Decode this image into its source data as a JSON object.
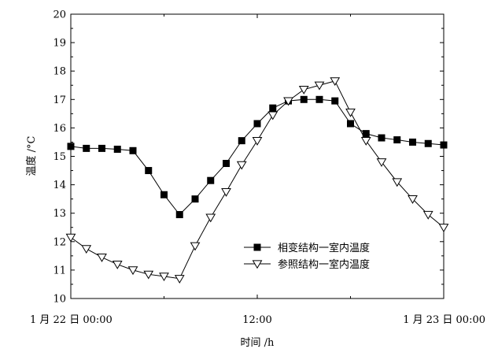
{
  "chart_data": {
    "type": "line",
    "xlabel": "时间 /h",
    "ylabel": "温度 /°C",
    "ylim": [
      10,
      20
    ],
    "xlim": [
      0,
      24
    ],
    "x_ticks": [
      {
        "value": 0,
        "label": "1 月 22 日 00:00"
      },
      {
        "value": 12,
        "label": "12:00"
      },
      {
        "value": 24,
        "label": "1 月 23 日 00:00"
      }
    ],
    "y_ticks": [
      10,
      11,
      12,
      13,
      14,
      15,
      16,
      17,
      18,
      19,
      20
    ],
    "grid": false,
    "legend_position": "lower-right",
    "series": [
      {
        "name": "相变结构一室内温度",
        "marker": "filled-square",
        "x": [
          0,
          1,
          2,
          3,
          4,
          5,
          6,
          7,
          8,
          9,
          10,
          11,
          12,
          13,
          14,
          15,
          16,
          17,
          18,
          19,
          20,
          21,
          22,
          23,
          24
        ],
        "values": [
          15.35,
          15.28,
          15.28,
          15.25,
          15.2,
          14.5,
          13.65,
          12.95,
          13.5,
          14.15,
          14.75,
          15.55,
          16.15,
          16.7,
          16.95,
          17.0,
          17.0,
          16.95,
          16.15,
          15.8,
          15.65,
          15.58,
          15.5,
          15.45,
          15.4
        ]
      },
      {
        "name": "参照结构一室内温度",
        "marker": "open-triangle-down",
        "x": [
          0,
          1,
          2,
          3,
          4,
          5,
          6,
          7,
          8,
          9,
          10,
          11,
          12,
          13,
          14,
          15,
          16,
          17,
          18,
          19,
          20,
          21,
          22,
          23,
          24
        ],
        "values": [
          12.15,
          11.75,
          11.45,
          11.2,
          11.0,
          10.85,
          10.78,
          10.7,
          11.85,
          12.85,
          13.75,
          14.7,
          15.55,
          16.45,
          16.95,
          17.35,
          17.5,
          17.65,
          16.55,
          15.55,
          14.8,
          14.1,
          13.5,
          12.95,
          12.5
        ]
      }
    ]
  }
}
